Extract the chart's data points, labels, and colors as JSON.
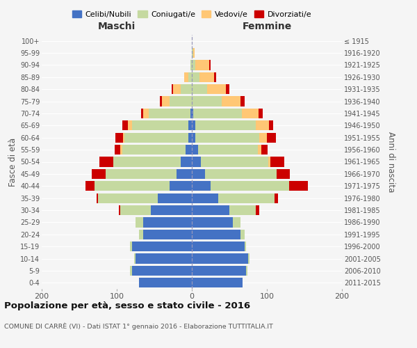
{
  "age_groups": [
    "0-4",
    "5-9",
    "10-14",
    "15-19",
    "20-24",
    "25-29",
    "30-34",
    "35-39",
    "40-44",
    "45-49",
    "50-54",
    "55-59",
    "60-64",
    "65-69",
    "70-74",
    "75-79",
    "80-84",
    "85-89",
    "90-94",
    "95-99",
    "100+"
  ],
  "birth_years": [
    "2011-2015",
    "2006-2010",
    "2001-2005",
    "1996-2000",
    "1991-1995",
    "1986-1990",
    "1981-1985",
    "1976-1980",
    "1971-1975",
    "1966-1970",
    "1961-1965",
    "1956-1960",
    "1951-1955",
    "1946-1950",
    "1941-1945",
    "1936-1940",
    "1931-1935",
    "1926-1930",
    "1921-1925",
    "1916-1920",
    "≤ 1915"
  ],
  "males": {
    "celibi": [
      70,
      80,
      75,
      80,
      65,
      65,
      55,
      45,
      30,
      20,
      15,
      8,
      5,
      5,
      2,
      0,
      0,
      0,
      0,
      0,
      0
    ],
    "coniugati": [
      0,
      2,
      2,
      2,
      5,
      10,
      40,
      80,
      100,
      95,
      90,
      85,
      85,
      75,
      55,
      30,
      15,
      5,
      2,
      0,
      0
    ],
    "vedovi": [
      0,
      0,
      0,
      0,
      0,
      0,
      0,
      0,
      0,
      0,
      0,
      2,
      2,
      5,
      8,
      10,
      10,
      5,
      0,
      0,
      0
    ],
    "divorziati": [
      0,
      0,
      0,
      0,
      0,
      0,
      2,
      2,
      12,
      18,
      18,
      8,
      10,
      8,
      3,
      3,
      2,
      0,
      0,
      0,
      0
    ]
  },
  "females": {
    "nubili": [
      68,
      72,
      75,
      70,
      65,
      55,
      50,
      35,
      25,
      18,
      12,
      8,
      5,
      5,
      2,
      0,
      0,
      0,
      0,
      0,
      0
    ],
    "coniugate": [
      0,
      2,
      2,
      2,
      5,
      10,
      35,
      75,
      105,
      95,
      90,
      80,
      85,
      80,
      65,
      40,
      20,
      10,
      5,
      2,
      0
    ],
    "vedove": [
      0,
      0,
      0,
      0,
      0,
      0,
      0,
      0,
      0,
      0,
      3,
      5,
      10,
      18,
      22,
      25,
      25,
      20,
      18,
      2,
      0
    ],
    "divorziate": [
      0,
      0,
      0,
      0,
      0,
      0,
      5,
      5,
      25,
      18,
      18,
      8,
      12,
      5,
      5,
      5,
      5,
      2,
      2,
      0,
      0
    ]
  },
  "colors": {
    "celibi": "#4472c4",
    "coniugati": "#c5d9a0",
    "vedovi": "#ffc775",
    "divorziati": "#cc0000"
  },
  "legend_labels": [
    "Celibi/Nubili",
    "Coniugati/e",
    "Vedovi/e",
    "Divorziati/e"
  ],
  "title": "Popolazione per età, sesso e stato civile - 2016",
  "subtitle": "COMUNE DI CARRÈ (VI) - Dati ISTAT 1° gennaio 2016 - Elaborazione TUTTITALIA.IT",
  "ylabel_left": "Fasce di età",
  "ylabel_right": "Anni di nascita",
  "xlabel_left": "Maschi",
  "xlabel_right": "Femmine",
  "xlim": 200,
  "background_color": "#f5f5f5"
}
